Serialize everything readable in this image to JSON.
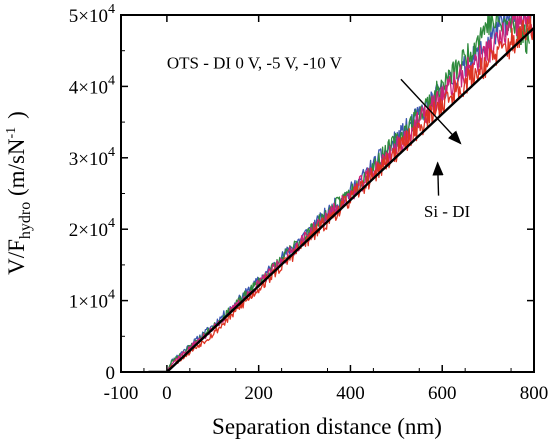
{
  "chart_data": {
    "type": "line",
    "title": "",
    "xlabel": "Separation distance (nm)",
    "ylabel": {
      "main": "V/F",
      "subscript": "hydro",
      "unit": " (m/sN",
      "close": ")"
    },
    "xlim": [
      -100,
      800
    ],
    "ylim": [
      0,
      50000
    ],
    "x_ticks": [
      {
        "value": -100,
        "label": "-100"
      },
      {
        "value": 0,
        "label": "0"
      },
      {
        "value": 200,
        "label": "200"
      },
      {
        "value": 400,
        "label": "400"
      },
      {
        "value": 600,
        "label": "600"
      },
      {
        "value": 800,
        "label": "800"
      }
    ],
    "y_ticks": [
      {
        "value": 0,
        "label": "0"
      },
      {
        "value": 10000,
        "label": "1×10",
        "exp": "4"
      },
      {
        "value": 20000,
        "label": "2×10",
        "exp": "4"
      },
      {
        "value": 30000,
        "label": "3×10",
        "exp": "4"
      },
      {
        "value": 40000,
        "label": "4×10",
        "exp": "4"
      },
      {
        "value": 50000,
        "label": "5×10",
        "exp": "4"
      }
    ],
    "grid": false,
    "series": [
      {
        "color": "#3a56b0",
        "noise_seed": 11,
        "points": [
          [
            -40,
            0
          ],
          [
            0,
            0
          ],
          [
            10,
            1500
          ],
          [
            100,
            6500
          ],
          [
            200,
            12800
          ],
          [
            300,
            19200
          ],
          [
            400,
            25300
          ],
          [
            500,
            32500
          ],
          [
            600,
            39500
          ],
          [
            680,
            44500
          ],
          [
            720,
            48000
          ],
          [
            760,
            50000
          ],
          [
            800,
            50000
          ]
        ]
      },
      {
        "color": "#2e8a3c",
        "noise_seed": 23,
        "points": [
          [
            -40,
            0
          ],
          [
            0,
            0
          ],
          [
            10,
            1400
          ],
          [
            100,
            6200
          ],
          [
            200,
            12600
          ],
          [
            300,
            19000
          ],
          [
            400,
            25200
          ],
          [
            500,
            32300
          ],
          [
            600,
            40000
          ],
          [
            660,
            44800
          ],
          [
            700,
            49000
          ],
          [
            760,
            48500
          ],
          [
            790,
            46000
          ]
        ]
      },
      {
        "color": "#cc2277",
        "noise_seed": 37,
        "points": [
          [
            -40,
            0
          ],
          [
            0,
            0
          ],
          [
            10,
            1200
          ],
          [
            100,
            6000
          ],
          [
            200,
            12300
          ],
          [
            300,
            18700
          ],
          [
            400,
            24800
          ],
          [
            500,
            31500
          ],
          [
            600,
            38800
          ],
          [
            680,
            43800
          ],
          [
            740,
            47500
          ],
          [
            780,
            49500
          ],
          [
            800,
            48000
          ]
        ]
      },
      {
        "color": "#dd3322",
        "noise_seed": 53,
        "points": [
          [
            -40,
            0
          ],
          [
            0,
            0
          ],
          [
            10,
            800
          ],
          [
            100,
            5300
          ],
          [
            200,
            11700
          ],
          [
            300,
            18000
          ],
          [
            400,
            24300
          ],
          [
            500,
            30800
          ],
          [
            600,
            37600
          ],
          [
            700,
            43500
          ],
          [
            800,
            48500
          ]
        ]
      },
      {
        "color": "#000000",
        "noise_seed": 0,
        "points": [
          [
            -40,
            0
          ],
          [
            0,
            0
          ],
          [
            800,
            48200
          ]
        ]
      }
    ],
    "annotations": [
      {
        "text": "OTS - DI 0 V, -5 V, -10 V",
        "text_pos": [
          0,
          42500
        ],
        "arrow_from": [
          510,
          41000
        ],
        "arrow_to": [
          640,
          32000
        ]
      },
      {
        "text": "Si - DI",
        "text_pos": [
          560,
          21700
        ],
        "arrow_from": [
          592,
          24700
        ],
        "arrow_to": [
          590,
          29300
        ]
      }
    ]
  }
}
